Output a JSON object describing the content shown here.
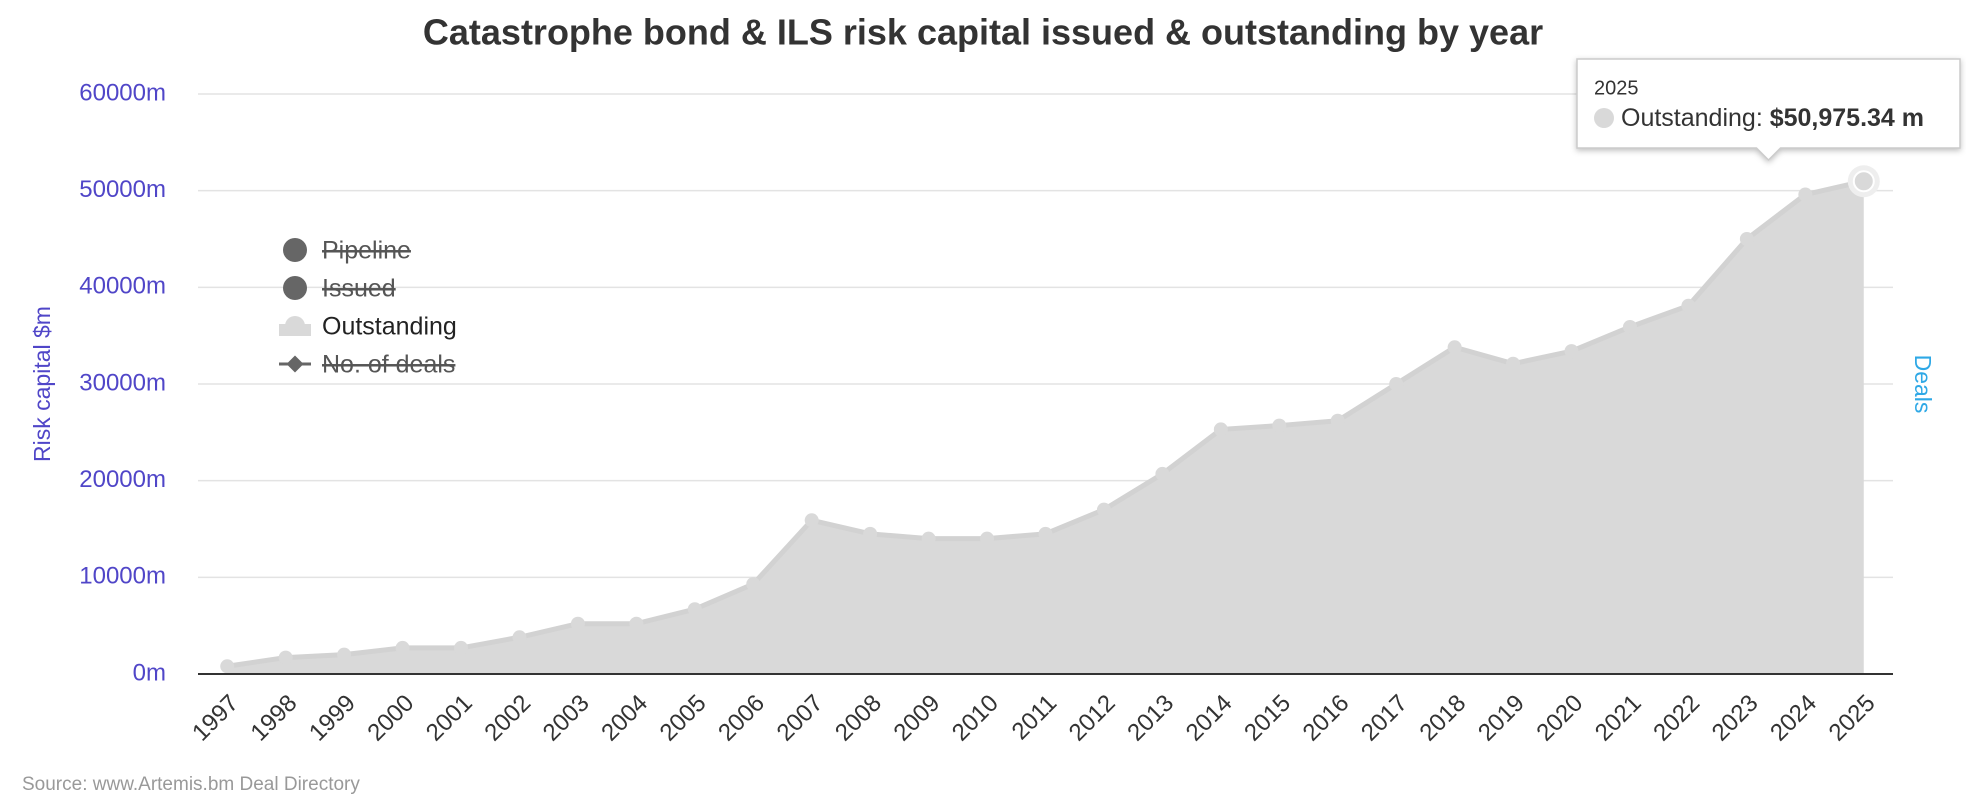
{
  "chart_data": {
    "type": "area",
    "title": "Catastrophe bond & ILS risk capital issued & outstanding by year",
    "y_axis_title": "Risk capital $m",
    "y2_axis_title": "Deals",
    "source": "Source: www.Artemis.bm Deal Directory",
    "categories": [
      "1997",
      "1998",
      "1999",
      "2000",
      "2001",
      "2002",
      "2003",
      "2004",
      "2005",
      "2006",
      "2007",
      "2008",
      "2009",
      "2010",
      "2011",
      "2012",
      "2013",
      "2014",
      "2015",
      "2016",
      "2017",
      "2018",
      "2019",
      "2020",
      "2021",
      "2022",
      "2023",
      "2024",
      "2025"
    ],
    "series": [
      {
        "name": "Outstanding",
        "color": "#d9d9d9",
        "values": [
          800,
          1700,
          2000,
          2700,
          2700,
          3800,
          5200,
          5200,
          6700,
          9300,
          15900,
          14500,
          14000,
          14000,
          14500,
          17000,
          20700,
          25300,
          25700,
          26200,
          30000,
          33800,
          32100,
          33400,
          35900,
          38100,
          45000,
          49600,
          50975.34
        ]
      }
    ],
    "legend": [
      {
        "name": "Pipeline",
        "hidden": true,
        "symbol": "circle"
      },
      {
        "name": "Issued",
        "hidden": true,
        "symbol": "circle"
      },
      {
        "series": 0
      },
      {
        "name": "No. of deals",
        "hidden": true,
        "symbol": "diamond-line"
      }
    ],
    "ylim": [
      0,
      60000
    ],
    "yticks": [
      {
        "value": 0,
        "label": "0m"
      },
      {
        "value": 10000,
        "label": "10000m"
      },
      {
        "value": 20000,
        "label": "20000m"
      },
      {
        "value": 30000,
        "label": "30000m"
      },
      {
        "value": 40000,
        "label": "40000m"
      },
      {
        "value": 50000,
        "label": "50000m"
      },
      {
        "value": 60000,
        "label": "60000m"
      }
    ],
    "grid": true,
    "tooltip": {
      "index": 28,
      "series_label": "Outstanding:",
      "value_label": "$50,975.34 m"
    }
  }
}
